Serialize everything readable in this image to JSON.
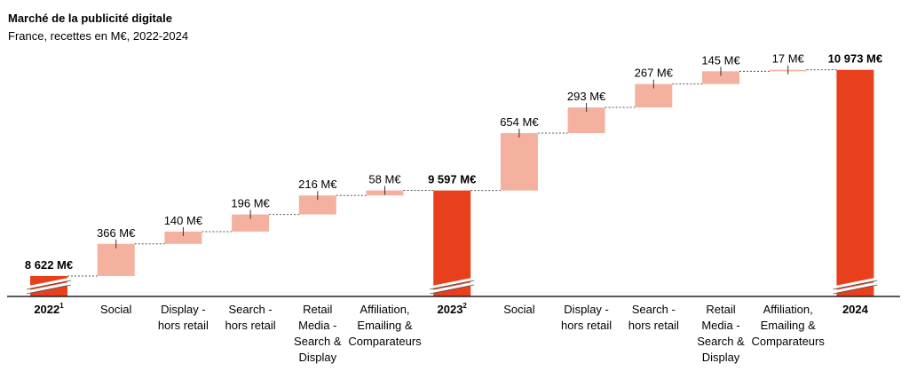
{
  "title": "Marché de la publicité digitale",
  "subtitle": "France, recettes en M€, 2022-2024",
  "colors": {
    "total": "#e8401c",
    "increment": "#f4b1a0",
    "connector": "#555555",
    "axis": "#222222"
  },
  "chart_data": {
    "type": "waterfall",
    "unit": "M€",
    "title": "Marché de la publicité digitale",
    "subtitle": "France, recettes en M€, 2022-2024",
    "axis_break": true,
    "categories": [
      "2022",
      "Social",
      "Display - hors retail",
      "Search - hors retail",
      "Retail Media - Search & Display",
      "Affiliation, Emailing & Comparateurs",
      "2023",
      "Social",
      "Display - hors retail",
      "Search - hors retail",
      "Retail Media - Search & Display",
      "Affiliation, Emailing & Comparateurs",
      "2024"
    ],
    "bars": [
      {
        "kind": "total",
        "value": 8622,
        "value_label": "8 622 M€",
        "label_lines": [
          "2022"
        ],
        "footnote": "1"
      },
      {
        "kind": "increment",
        "value": 366,
        "value_label": "366 M€",
        "label_lines": [
          "Social"
        ]
      },
      {
        "kind": "increment",
        "value": 140,
        "value_label": "140 M€",
        "label_lines": [
          "Display -",
          "hors retail"
        ]
      },
      {
        "kind": "increment",
        "value": 196,
        "value_label": "196 M€",
        "label_lines": [
          "Search -",
          "hors retail"
        ]
      },
      {
        "kind": "increment",
        "value": 216,
        "value_label": "216 M€",
        "label_lines": [
          "Retail",
          "Media -",
          "Search &",
          "Display"
        ]
      },
      {
        "kind": "increment",
        "value": 58,
        "value_label": "58 M€",
        "label_lines": [
          "Affiliation,",
          "Emailing &",
          "Comparateurs"
        ]
      },
      {
        "kind": "total",
        "value": 9597,
        "value_label": "9 597 M€",
        "label_lines": [
          "2023"
        ],
        "footnote": "2"
      },
      {
        "kind": "increment",
        "value": 654,
        "value_label": "654 M€",
        "label_lines": [
          "Social"
        ]
      },
      {
        "kind": "increment",
        "value": 293,
        "value_label": "293 M€",
        "label_lines": [
          "Display -",
          "hors retail"
        ]
      },
      {
        "kind": "increment",
        "value": 267,
        "value_label": "267 M€",
        "label_lines": [
          "Search -",
          "hors retail"
        ]
      },
      {
        "kind": "increment",
        "value": 145,
        "value_label": "145 M€",
        "label_lines": [
          "Retail",
          "Media -",
          "Search &",
          "Display"
        ]
      },
      {
        "kind": "increment",
        "value": 17,
        "value_label": "17 M€",
        "label_lines": [
          "Affiliation,",
          "Emailing &",
          "Comparateurs"
        ]
      },
      {
        "kind": "total",
        "value": 10973,
        "value_label": "10 973 M€",
        "label_lines": [
          "2024"
        ]
      }
    ]
  }
}
